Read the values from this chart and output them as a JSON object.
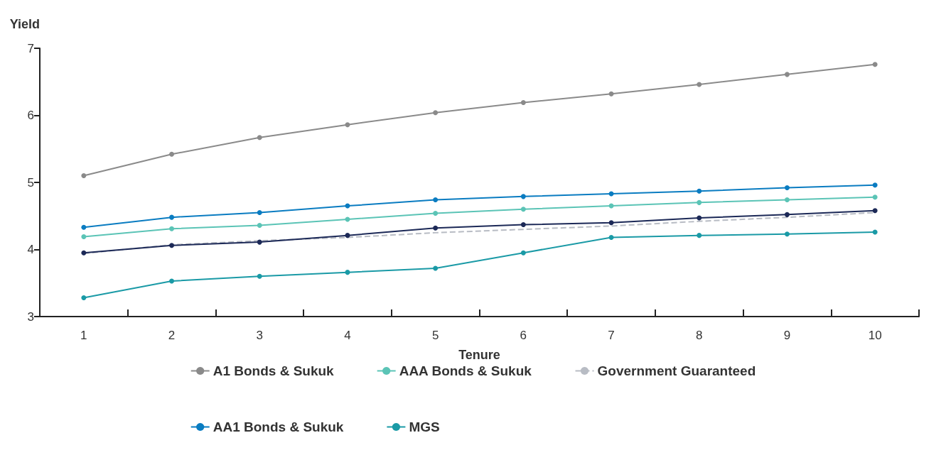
{
  "chart_data": {
    "type": "line",
    "xlabel": "Tenure",
    "ylabel": "Yield",
    "categories": [
      "1",
      "2",
      "3",
      "4",
      "5",
      "6",
      "7",
      "8",
      "9",
      "10"
    ],
    "ylim": [
      3,
      7
    ],
    "yticks": [
      3,
      4,
      5,
      6,
      7
    ],
    "grid": false,
    "legend": "bottom",
    "series": [
      {
        "name": "A1 Bonds & Sukuk",
        "color": "#8a8a8a",
        "marker": "circle",
        "values": [
          5.1,
          5.42,
          5.67,
          5.86,
          6.04,
          6.19,
          6.32,
          6.46,
          6.61,
          6.76
        ]
      },
      {
        "name": "AAA Bonds & Sukuk",
        "color": "#5bc4b6",
        "marker": "circle",
        "values": [
          4.19,
          4.31,
          4.36,
          4.45,
          4.54,
          4.6,
          4.65,
          4.7,
          4.74,
          4.78
        ]
      },
      {
        "name": "Government Guaranteed",
        "color": "#b8bcc4",
        "marker": "none",
        "line_style": "dashed",
        "values": [
          3.94,
          4.07,
          4.13,
          4.18,
          4.25,
          4.3,
          4.35,
          4.42,
          4.48,
          4.55
        ]
      },
      {
        "name": "AA1 Bonds & Sukuk",
        "color": "#0a7cc1",
        "marker": "circle",
        "values": [
          4.33,
          4.48,
          4.55,
          4.65,
          4.74,
          4.79,
          4.83,
          4.87,
          4.92,
          4.96
        ]
      },
      {
        "color": "#1c2957",
        "marker": "circle",
        "values": [
          3.95,
          4.06,
          4.11,
          4.21,
          4.32,
          4.37,
          4.4,
          4.47,
          4.52,
          4.58
        ]
      },
      {
        "name": "MGS",
        "color": "#1a9aa6",
        "marker": "circle",
        "values": [
          3.28,
          3.53,
          3.6,
          3.66,
          3.72,
          3.95,
          4.18,
          4.21,
          4.23,
          4.26
        ]
      }
    ]
  }
}
